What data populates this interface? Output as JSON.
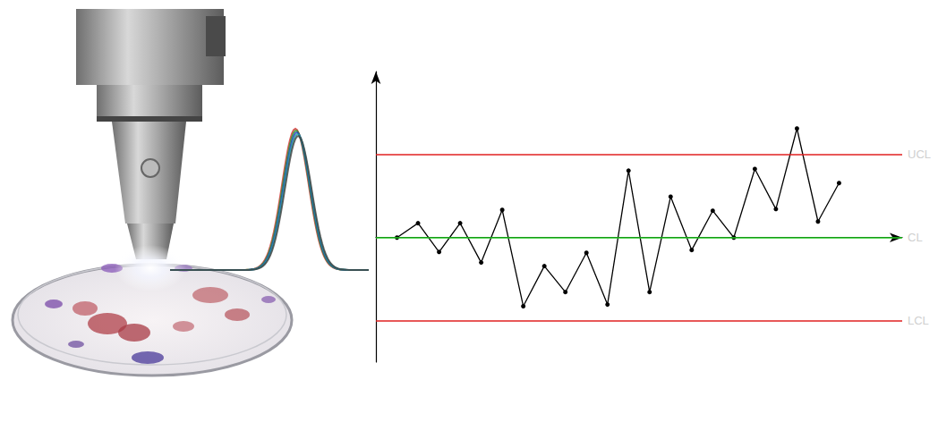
{
  "chart_data": {
    "type": "line",
    "x": [
      1,
      2,
      3,
      4,
      5,
      6,
      7,
      8,
      9,
      10,
      11,
      12,
      13,
      14,
      15,
      16,
      17,
      18,
      19,
      20,
      21,
      22
    ],
    "values": [
      0,
      0.52,
      -0.52,
      0.52,
      -0.9,
      1.0,
      -2.48,
      -1.03,
      -1.97,
      -0.55,
      -2.42,
      2.42,
      -1.97,
      1.48,
      -0.45,
      0.97,
      0,
      2.48,
      1.03,
      3.94,
      0.58,
      1.97
    ],
    "color": "#000000",
    "marker": "circle",
    "xlim": [
      0,
      25
    ],
    "xticks": [],
    "ylim": [
      -4.5,
      6
    ],
    "yticks": [],
    "tick_labels": false,
    "grid": false,
    "reference_lines": [
      {
        "label": "UCL",
        "value": 3,
        "color": "#e02020"
      },
      {
        "label": "CL",
        "value": 0,
        "color": "#22cc22"
      },
      {
        "label": "LCL",
        "value": -3,
        "color": "#e02020"
      }
    ]
  }
}
